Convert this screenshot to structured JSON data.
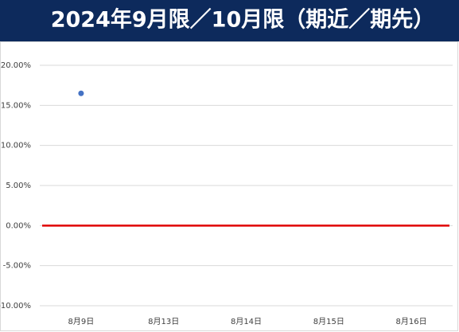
{
  "chart_data": {
    "type": "scatter",
    "title": "2024年9月限／10月限（期近／期先）",
    "categories": [
      "8月9日",
      "8月13日",
      "8月14日",
      "8月15日",
      "8月16日"
    ],
    "series": [
      {
        "color": "#4472c4",
        "values": [
          16.5,
          null,
          null,
          null,
          null
        ]
      }
    ],
    "reference_line": {
      "value": 0,
      "color": "#e00000"
    },
    "ylim": [
      -10,
      20
    ],
    "yticks": [
      {
        "value": -10,
        "label": "-10.00%"
      },
      {
        "value": -5,
        "label": "-5.00%"
      },
      {
        "value": 0,
        "label": "0.00%"
      },
      {
        "value": 5,
        "label": "5.00%"
      },
      {
        "value": 10,
        "label": "10.00%"
      },
      {
        "value": 15,
        "label": "15.00%"
      },
      {
        "value": 20,
        "label": "20.00%"
      }
    ],
    "grid": true
  }
}
